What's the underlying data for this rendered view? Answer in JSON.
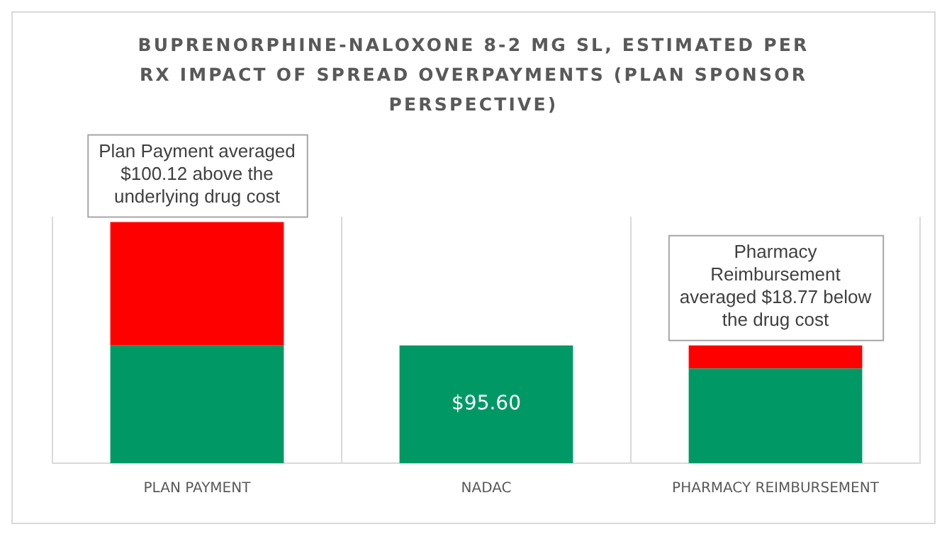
{
  "chart_data": {
    "type": "bar",
    "title": "BUPRENORPHINE-NALOXONE 8-2 MG SL, ESTIMATED PER RX IMPACT OF SPREAD OVERPAYMENTS (PLAN SPONSOR PERSPECTIVE)",
    "categories": [
      "PLAN PAYMENT",
      "NADAC",
      "PHARMACY REIMBURSEMENT"
    ],
    "stacked": true,
    "series": [
      {
        "color": "#009966",
        "values": [
          95.6,
          95.6,
          76.83
        ],
        "value_labels": [
          null,
          "$95.60",
          null
        ]
      },
      {
        "color": "#ff0000",
        "values": [
          100.12,
          null,
          18.77
        ]
      }
    ],
    "annotations": [
      {
        "text": "Plan Payment averaged $100.12 above the underlying drug cost",
        "x": "PLAN PAYMENT",
        "y": 195.72
      },
      {
        "text": "Pharmacy Reimbursement averaged $18.77 below the drug cost",
        "x": "PHARMACY REIMBURSEMENT",
        "y": 95.6
      }
    ],
    "grid": "x",
    "legend": false
  }
}
